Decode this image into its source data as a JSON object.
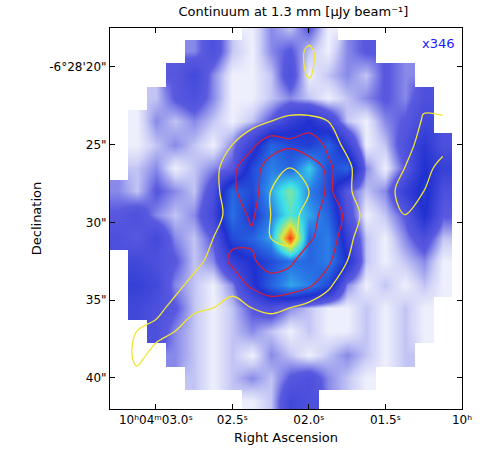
{
  "chart_data": {
    "type": "heatmap",
    "title": "Continuum at 1.3 mm [μJy beam⁻¹]",
    "xlabel": "Right Ascension",
    "ylabel": "Declination",
    "annotation": "x346",
    "x": [
      3.25,
      3.125,
      3.0,
      2.875,
      2.75,
      2.625,
      2.5,
      2.375,
      2.25,
      2.125,
      2.0,
      1.875,
      1.75,
      1.625,
      1.5,
      1.375,
      1.25,
      1.125
    ],
    "y": [
      17.5,
      19,
      20.5,
      22,
      23.5,
      25,
      26.5,
      28,
      29.5,
      31,
      32.5,
      34,
      35.5,
      37,
      38.5,
      40,
      41.5
    ],
    "z": [
      [
        null,
        null,
        null,
        null,
        null,
        null,
        null,
        10,
        20,
        15,
        25,
        10,
        null,
        null,
        null,
        null,
        null,
        null
      ],
      [
        null,
        null,
        null,
        null,
        20,
        30,
        15,
        10,
        20,
        25,
        15,
        10,
        20,
        25,
        null,
        null,
        null,
        null
      ],
      [
        null,
        null,
        null,
        25,
        35,
        20,
        10,
        10,
        15,
        30,
        10,
        15,
        20,
        15,
        25,
        20,
        null,
        null
      ],
      [
        null,
        null,
        15,
        25,
        30,
        20,
        10,
        10,
        15,
        20,
        15,
        10,
        15,
        20,
        25,
        20,
        30,
        null
      ],
      [
        null,
        10,
        20,
        15,
        20,
        15,
        10,
        15,
        25,
        40,
        50,
        35,
        15,
        10,
        20,
        25,
        35,
        null
      ],
      [
        null,
        10,
        15,
        20,
        15,
        10,
        20,
        40,
        70,
        60,
        55,
        70,
        40,
        10,
        15,
        30,
        45,
        30
      ],
      [
        null,
        15,
        20,
        10,
        15,
        20,
        25,
        60,
        80,
        70,
        100,
        60,
        70,
        20,
        10,
        25,
        50,
        40
      ],
      [
        20,
        15,
        25,
        20,
        15,
        30,
        70,
        60,
        90,
        120,
        80,
        60,
        25,
        15,
        20,
        40,
        55,
        30
      ],
      [
        25,
        30,
        20,
        15,
        20,
        35,
        75,
        50,
        80,
        110,
        90,
        70,
        30,
        10,
        15,
        25,
        50,
        25
      ],
      [
        30,
        25,
        35,
        20,
        15,
        25,
        60,
        70,
        90,
        180,
        70,
        80,
        40,
        15,
        10,
        20,
        30,
        15
      ],
      [
        null,
        35,
        30,
        25,
        15,
        20,
        40,
        50,
        60,
        75,
        70,
        80,
        50,
        15,
        10,
        15,
        20,
        10
      ],
      [
        null,
        40,
        35,
        20,
        15,
        10,
        20,
        45,
        70,
        90,
        80,
        60,
        20,
        10,
        15,
        10,
        15,
        10
      ],
      [
        null,
        35,
        30,
        25,
        15,
        10,
        15,
        25,
        30,
        20,
        15,
        10,
        10,
        15,
        10,
        15,
        10,
        null
      ],
      [
        null,
        null,
        30,
        20,
        15,
        10,
        15,
        20,
        15,
        10,
        15,
        10,
        10,
        15,
        10,
        15,
        10,
        null
      ],
      [
        null,
        null,
        null,
        20,
        15,
        10,
        15,
        10,
        20,
        15,
        10,
        15,
        20,
        15,
        10,
        15,
        null,
        null
      ],
      [
        null,
        null,
        null,
        null,
        15,
        10,
        15,
        20,
        15,
        25,
        30,
        20,
        15,
        10,
        null,
        null,
        null,
        null
      ],
      [
        null,
        null,
        null,
        null,
        null,
        null,
        null,
        10,
        15,
        35,
        30,
        null,
        null,
        null,
        null,
        null,
        null,
        null
      ]
    ],
    "zlim": [
      0,
      200
    ],
    "contours": {
      "z": [
        [
          0,
          0,
          0,
          0,
          0,
          0,
          0,
          0,
          0,
          0,
          0,
          0,
          0,
          0,
          0,
          0,
          0,
          0
        ],
        [
          0,
          0,
          0,
          0,
          0,
          0,
          0,
          0,
          0,
          0,
          4,
          0,
          0,
          0,
          0,
          0,
          0,
          0
        ],
        [
          0,
          0,
          0,
          0,
          0,
          0,
          0,
          0,
          0,
          0,
          3.5,
          0,
          0,
          0,
          0,
          0,
          0,
          0
        ],
        [
          0,
          0,
          0,
          0,
          0,
          0,
          0,
          0,
          0,
          0,
          0,
          0,
          0,
          0,
          0,
          0,
          2,
          0
        ],
        [
          0,
          0,
          0,
          0,
          0,
          0,
          0,
          2,
          3,
          4,
          4,
          3,
          0,
          0,
          0,
          0,
          3.5,
          4
        ],
        [
          0,
          0,
          0,
          0,
          0,
          0,
          3,
          5,
          7,
          6,
          7,
          5,
          2,
          0,
          0,
          2,
          4,
          4
        ],
        [
          0,
          0,
          0,
          0,
          0,
          2,
          5,
          7,
          4,
          3,
          4,
          6,
          4,
          0,
          0,
          3,
          4,
          2
        ],
        [
          0,
          0,
          0,
          0,
          0,
          2,
          5,
          7,
          3,
          2,
          3,
          6,
          4,
          0,
          2,
          4,
          3,
          0
        ],
        [
          0,
          0,
          0,
          0,
          0,
          2,
          4,
          6,
          3,
          2,
          4,
          7,
          5,
          2,
          3,
          3,
          0,
          0
        ],
        [
          0,
          0,
          0,
          0,
          0,
          3,
          5,
          5,
          3,
          2,
          5,
          7,
          4,
          1,
          0,
          0,
          0,
          0
        ],
        [
          0,
          0,
          0,
          0,
          2,
          4,
          6,
          6,
          4,
          5,
          7,
          6,
          3,
          0,
          0,
          0,
          0,
          0
        ],
        [
          0,
          0,
          0,
          2,
          4,
          5,
          4,
          6,
          7,
          7,
          6,
          4,
          0,
          0,
          0,
          0,
          0,
          0
        ],
        [
          0,
          0,
          2,
          4,
          4,
          3,
          2,
          3,
          4,
          3,
          2,
          0,
          0,
          0,
          0,
          0,
          0,
          0
        ],
        [
          0,
          3,
          4,
          3,
          0,
          0,
          0,
          0,
          0,
          0,
          0,
          0,
          0,
          0,
          0,
          0,
          0,
          0
        ],
        [
          0,
          4,
          2,
          0,
          0,
          0,
          0,
          0,
          0,
          0,
          0,
          0,
          0,
          0,
          0,
          0,
          0,
          0
        ],
        [
          0,
          2,
          0,
          0,
          0,
          0,
          0,
          0,
          0,
          0,
          0,
          0,
          0,
          0,
          0,
          0,
          0,
          0
        ],
        [
          0,
          0,
          0,
          0,
          0,
          0,
          0,
          0,
          0,
          0,
          0,
          0,
          0,
          0,
          0,
          0,
          0,
          0
        ]
      ],
      "levels": [
        {
          "value": 3,
          "color": "#f2e634"
        },
        {
          "value": 5.5,
          "color": "#d0203c"
        }
      ]
    },
    "xlim": [
      3.3,
      1.0
    ],
    "xticks": [
      {
        "value": 3.0,
        "label": "10ʰ04ᵐ03.0ˢ"
      },
      {
        "value": 2.5,
        "label": "02.5ˢ"
      },
      {
        "value": 2.0,
        "label": "02.0ˢ"
      },
      {
        "value": 1.5,
        "label": "01.5ˢ"
      },
      {
        "value": 1.0,
        "label": "10ʰ"
      }
    ],
    "ylim": [
      42,
      17.5
    ],
    "yticks": [
      {
        "value": 20,
        "label": "-6°28'20\""
      },
      {
        "value": 25,
        "label": "25\""
      },
      {
        "value": 30,
        "label": "30\""
      },
      {
        "value": 35,
        "label": "35\""
      },
      {
        "value": 40,
        "label": "40\""
      }
    ],
    "grid": false
  }
}
